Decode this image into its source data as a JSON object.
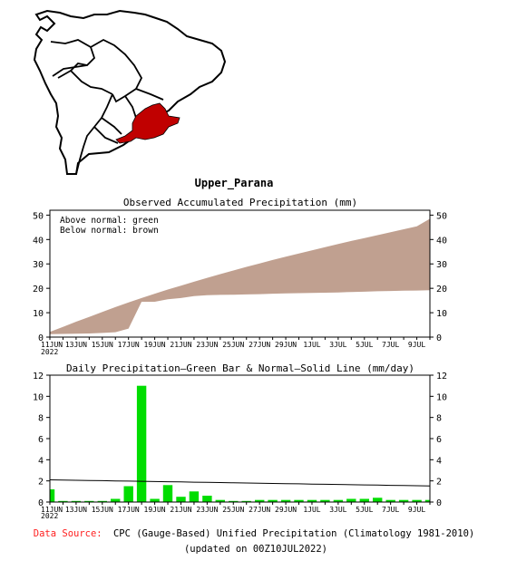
{
  "region_name": "Upper_Parana",
  "colors": {
    "map_fill": "#ffffff",
    "region": "#c00000",
    "accum_above": "#00cc00",
    "accum_below": "#c0a090",
    "daily_bar": "#00dd00",
    "normal_line": "#000000",
    "source_label": "#ff2020"
  },
  "chart_data": [
    {
      "type": "area",
      "title": "Observed Accumulated Precipitation (mm)",
      "legend": [
        "Above normal: green",
        "Below normal: brown"
      ],
      "legend_position": "top-left",
      "xlim": [
        0,
        29
      ],
      "ylim": [
        0,
        52
      ],
      "yticks": [
        0,
        10,
        20,
        30,
        40,
        50
      ],
      "xticks": [
        {
          "day": 0,
          "label": "11JUN"
        },
        {
          "day": 2,
          "label": "13JUN"
        },
        {
          "day": 4,
          "label": "15JUN"
        },
        {
          "day": 6,
          "label": "17JUN"
        },
        {
          "day": 8,
          "label": "19JUN"
        },
        {
          "day": 10,
          "label": "21JUN"
        },
        {
          "day": 12,
          "label": "23JUN"
        },
        {
          "day": 14,
          "label": "25JUN"
        },
        {
          "day": 16,
          "label": "27JUN"
        },
        {
          "day": 18,
          "label": "29JUN"
        },
        {
          "day": 20,
          "label": "1JUL"
        },
        {
          "day": 22,
          "label": "3JUL"
        },
        {
          "day": 24,
          "label": "5JUL"
        },
        {
          "day": 26,
          "label": "7JUL"
        },
        {
          "day": 28,
          "label": "9JUL"
        }
      ],
      "year_label": "2022",
      "day": [
        0,
        1,
        2,
        3,
        4,
        5,
        6,
        7,
        8,
        9,
        10,
        11,
        12,
        13,
        14,
        15,
        16,
        17,
        18,
        19,
        20,
        21,
        22,
        23,
        24,
        25,
        26,
        27,
        28,
        29
      ],
      "series": [
        {
          "name": "Observed",
          "values": [
            1.2,
            1.3,
            1.4,
            1.5,
            1.7,
            2.0,
            3.5,
            14.5,
            14.5,
            15.5,
            16.0,
            16.8,
            17.2,
            17.3,
            17.4,
            17.5,
            17.6,
            17.8,
            17.9,
            18.0,
            18.1,
            18.2,
            18.3,
            18.5,
            18.6,
            18.8,
            18.9,
            19.0,
            19.1,
            19.2
          ]
        },
        {
          "name": "Normal",
          "values": [
            2.1,
            4.2,
            6.3,
            8.3,
            10.3,
            12.3,
            14.2,
            16.0,
            17.8,
            19.5,
            21.1,
            22.7,
            24.3,
            25.8,
            27.3,
            28.8,
            30.2,
            31.6,
            33.0,
            34.3,
            35.6,
            36.9,
            38.2,
            39.4,
            40.6,
            41.8,
            43.0,
            44.2,
            45.4,
            48.5
          ]
        }
      ]
    },
    {
      "type": "bar",
      "title": "Daily Precipitation—Green Bar & Normal—Solid Line (mm/day)",
      "xlim": [
        0,
        29
      ],
      "ylim": [
        0,
        12
      ],
      "yticks": [
        0,
        2,
        4,
        6,
        8,
        10,
        12
      ],
      "year_label": "2022",
      "day": [
        0,
        1,
        2,
        3,
        4,
        5,
        6,
        7,
        8,
        9,
        10,
        11,
        12,
        13,
        14,
        15,
        16,
        17,
        18,
        19,
        20,
        21,
        22,
        23,
        24,
        25,
        26,
        27,
        28,
        29
      ],
      "bars": [
        1.2,
        0.1,
        0.1,
        0.1,
        0.1,
        0.3,
        1.5,
        11.0,
        0.3,
        1.6,
        0.5,
        1.0,
        0.6,
        0.2,
        0.1,
        0.1,
        0.2,
        0.2,
        0.2,
        0.2,
        0.2,
        0.2,
        0.2,
        0.3,
        0.3,
        0.4,
        0.2,
        0.2,
        0.2,
        0.2
      ],
      "normal": [
        2.1,
        2.08,
        2.06,
        2.04,
        2.02,
        2.0,
        1.98,
        1.96,
        1.94,
        1.92,
        1.9,
        1.88,
        1.86,
        1.84,
        1.82,
        1.8,
        1.78,
        1.76,
        1.74,
        1.72,
        1.7,
        1.68,
        1.66,
        1.64,
        1.62,
        1.6,
        1.58,
        1.56,
        1.54,
        1.52
      ]
    }
  ],
  "footer": {
    "source_label": "Data Source:",
    "source_text": "CPC (Gauge-Based) Unified Precipitation (Climatology 1981-2010)",
    "updated": "(updated on 00Z10JUL2022)"
  }
}
